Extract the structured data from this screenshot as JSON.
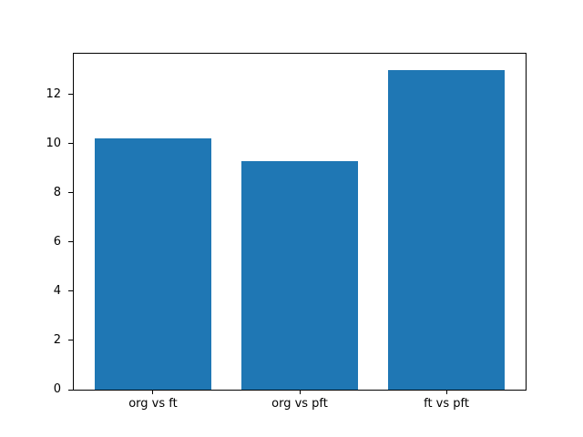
{
  "chart_data": {
    "type": "bar",
    "categories": [
      "org vs ft",
      "org vs pft",
      "ft vs pft"
    ],
    "values": [
      10.2,
      9.3,
      13.0
    ],
    "title": "",
    "xlabel": "",
    "ylabel": "",
    "ylim": [
      0,
      13.65
    ],
    "yticks": [
      0,
      2,
      4,
      6,
      8,
      10,
      12
    ],
    "bar_color": "#1f77b4",
    "bar_relative_width": 0.8,
    "x_margin_units": 0.54,
    "grid": false,
    "legend": false,
    "background_color": "#ffffff",
    "axis_color": "#000000"
  }
}
